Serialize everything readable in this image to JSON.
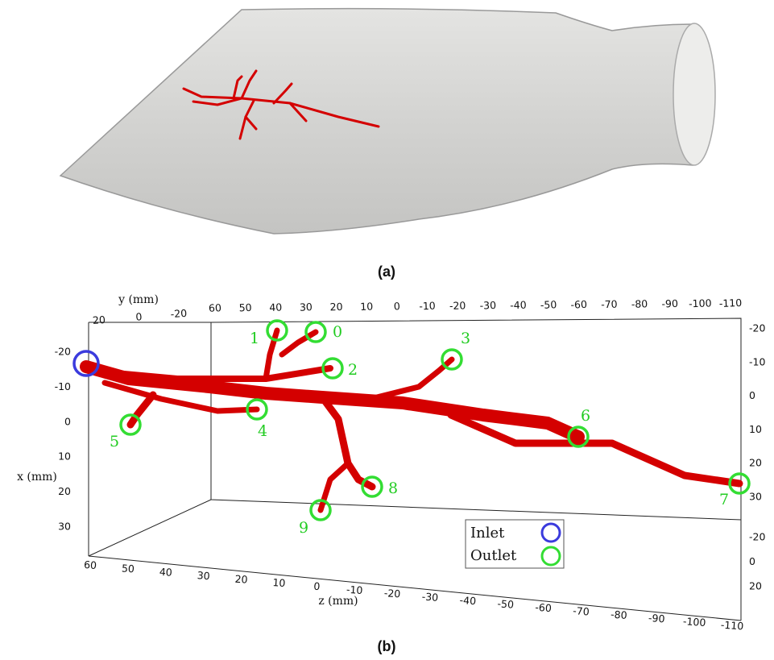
{
  "panel_a": {
    "label": "(a)"
  },
  "panel_b": {
    "label": "(b)",
    "y_axis": {
      "label": "y (mm)",
      "front_ticks": [
        "20",
        "0",
        "-20"
      ],
      "back_ticks": [
        "60",
        "50",
        "40",
        "30",
        "20",
        "10",
        "0",
        "-10",
        "-20",
        "-30",
        "-40",
        "-50",
        "-60",
        "-70",
        "-80",
        "-90",
        "-100",
        "-110"
      ],
      "right_bottom_ticks": [
        "-20",
        "0",
        "20"
      ]
    },
    "x_axis": {
      "label": "x (mm)",
      "left_ticks": [
        "-20",
        "-10",
        "0",
        "10",
        "20",
        "30"
      ],
      "right_ticks": [
        "-20",
        "-10",
        "0",
        "10",
        "20",
        "30"
      ]
    },
    "z_axis": {
      "label": "z (mm)",
      "ticks": [
        "60",
        "50",
        "40",
        "30",
        "20",
        "10",
        "0",
        "-10",
        "-20",
        "-30",
        "-40",
        "-50",
        "-60",
        "-70",
        "-80",
        "-90",
        "-100",
        "-110"
      ]
    },
    "outlets": [
      "0",
      "1",
      "2",
      "3",
      "4",
      "5",
      "6",
      "7",
      "8",
      "9"
    ],
    "legend": {
      "inlet": "Inlet",
      "outlet": "Outlet"
    }
  }
}
